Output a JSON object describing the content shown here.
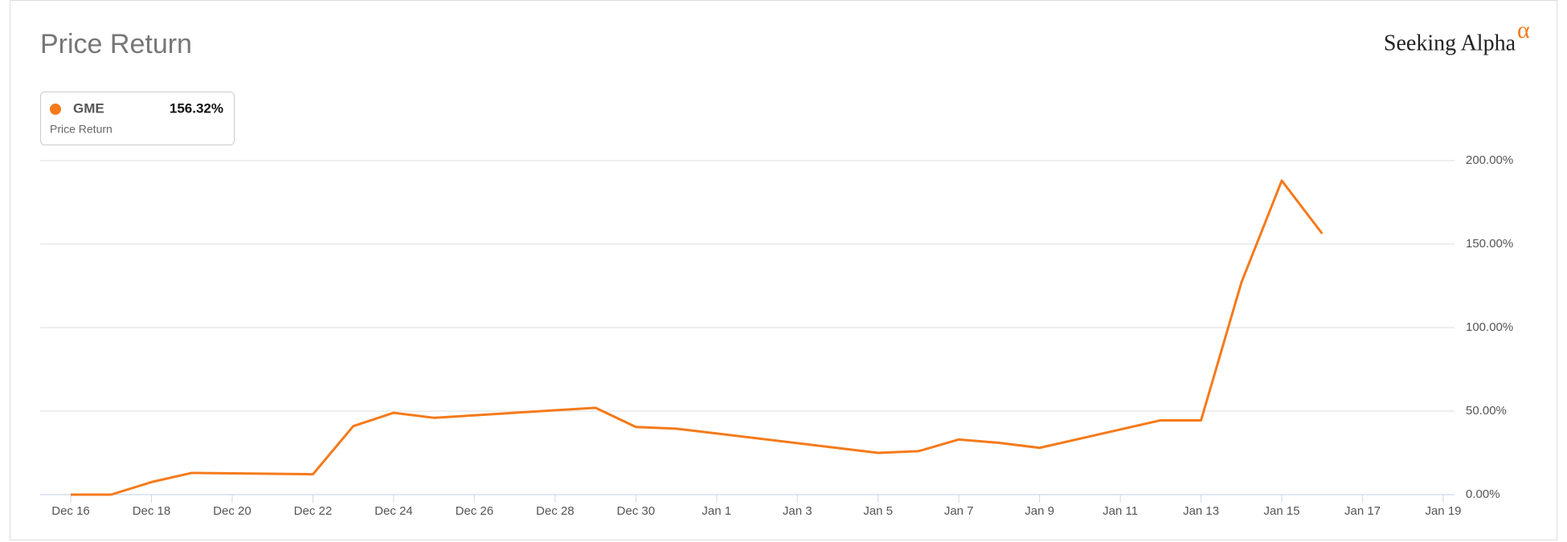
{
  "chart_data": {
    "type": "line",
    "title": "Price Return",
    "brand": "Seeking Alpha",
    "brand_mark": "α",
    "x": [
      "Dec 16",
      "Dec 17",
      "Dec 18",
      "Dec 19",
      "Dec 22",
      "Dec 23",
      "Dec 24",
      "Dec 25",
      "Dec 29",
      "Dec 30",
      "Dec 31",
      "Jan 5",
      "Jan 6",
      "Jan 7",
      "Jan 8",
      "Jan 9",
      "Jan 12",
      "Jan 13",
      "Jan 14",
      "Jan 15",
      "Jan 16"
    ],
    "series": [
      {
        "name": "GME",
        "color": "#f57a1a",
        "legend_caption": "Price Return",
        "legend_value": 156.32,
        "legend_value_label": "156.32%",
        "values": [
          0,
          0,
          7.5,
          13,
          12.2,
          41,
          49,
          46,
          52,
          40.5,
          39.5,
          25,
          26,
          33,
          31,
          28,
          44.5,
          44.5,
          127,
          188,
          156.32
        ]
      }
    ],
    "xlim": [
      "Dec 16",
      "Jan 19"
    ],
    "xticks": [
      "Dec 16",
      "Dec 18",
      "Dec 20",
      "Dec 22",
      "Dec 24",
      "Dec 26",
      "Dec 28",
      "Dec 30",
      "Jan 1",
      "Jan 3",
      "Jan 5",
      "Jan 7",
      "Jan 9",
      "Jan 11",
      "Jan 13",
      "Jan 15",
      "Jan 17",
      "Jan 19"
    ],
    "ylim": [
      0,
      200
    ],
    "yticks": [
      {
        "value": 0,
        "label": "0.00%"
      },
      {
        "value": 50,
        "label": "50.00%"
      },
      {
        "value": 100,
        "label": "100.00%"
      },
      {
        "value": 150,
        "label": "150.00%"
      },
      {
        "value": 200,
        "label": "200.00%"
      }
    ],
    "grid": true
  }
}
